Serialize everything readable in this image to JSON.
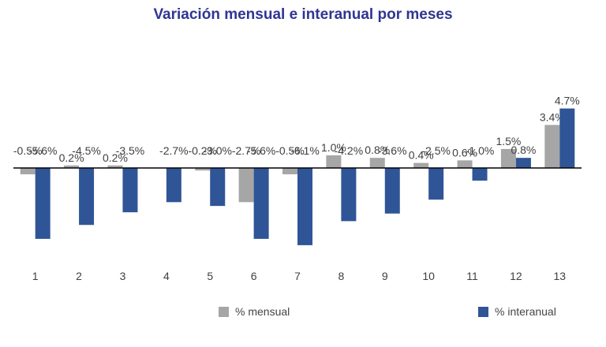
{
  "colors": {
    "title": "#2e3692",
    "mensual": "#a6a6a6",
    "interanual": "#2f5597",
    "axis": "#000000",
    "label": "#404040"
  },
  "chart_data": {
    "type": "bar",
    "title": "Variación mensual e interanual por meses",
    "xlabel": "",
    "ylabel": "",
    "categories": [
      "1",
      "2",
      "3",
      "4",
      "5",
      "6",
      "7",
      "8",
      "9",
      "10",
      "11",
      "12",
      "13"
    ],
    "series": [
      {
        "name": "% mensual",
        "values": [
          -0.5,
          0.2,
          0.2,
          null,
          -0.2,
          -2.7,
          -0.5,
          1.0,
          0.8,
          0.4,
          0.6,
          1.5,
          3.4
        ],
        "labels": [
          "-0.5%",
          "0.2%",
          "0.2%",
          "",
          "-0.2%",
          "-2.7%",
          "-0.5%",
          "1.0%",
          "0.8%",
          "0.4%",
          "0.6%",
          "1.5%",
          "3.4%"
        ]
      },
      {
        "name": "% interanual",
        "values": [
          -5.6,
          -4.5,
          -3.5,
          -2.7,
          -3.0,
          -5.6,
          -6.1,
          -4.2,
          -3.6,
          -2.5,
          -1.0,
          0.8,
          4.7
        ],
        "labels": [
          "-5.6%",
          "-4.5%",
          "-3.5%",
          "-2.7%",
          "-3.0%",
          "-5.6%",
          "-6.1%",
          "-4.2%",
          "-3.6%",
          "-2.5%",
          "-1.0%",
          "0.8%",
          "4.7%"
        ]
      }
    ],
    "ylim": [
      -7,
      5.5
    ],
    "grid": false,
    "legend": "bottom"
  }
}
